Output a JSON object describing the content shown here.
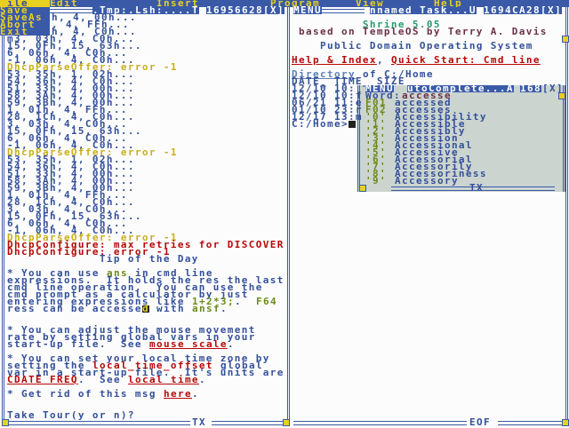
{
  "menubar": {
    "items": [
      "ile",
      "Edit",
      "Insert",
      "Program",
      "View",
      "Help"
    ],
    "dropdown": [
      "Save",
      "SaveAs",
      "Abort",
      "Exit"
    ]
  },
  "left": {
    "title": ".Tmp:.Lsh:....T",
    "task_id": "16956628",
    "close": "[X]",
    "status": "TX",
    "lines": [
      [
        [
          "h, 4, 00h...",
          "b"
        ]
      ],
      [
        [
          ", 4, FFh...",
          "b"
        ]
      ],
      [
        [
          "h, 4, C0h...",
          "b"
        ]
      ],
      [
        [
          "m3, 03h, 4, C0h...",
          "b"
        ]
      ],
      [
        [
          "15, 0Fh, 15, 63h...",
          "b"
        ]
      ],
      [
        [
          "6, 06h, 4, C0h...",
          "b"
        ]
      ],
      [
        [
          "-1, 06h, 4, C0h...",
          "b"
        ]
      ],
      [
        [
          "DhcpParseOffer: error -1",
          "y"
        ]
      ],
      [
        [
          "53, 35h, 1, 02h...",
          "b"
        ]
      ],
      [
        [
          "54, 36h, 4, C0h...",
          "b"
        ]
      ],
      [
        [
          "51, 33h, 4, 00h...",
          "b"
        ]
      ],
      [
        [
          "58, 3Ah, 4, 00h...",
          "b"
        ]
      ],
      [
        [
          "59, 3Bh, 4, 00h...",
          "b"
        ]
      ],
      [
        [
          "1, 01h, 4, FFh...",
          "b"
        ]
      ],
      [
        [
          "28, 1Ch, 4, C0h...",
          "b"
        ]
      ],
      [
        [
          "3, 03h, 4, C0h...",
          "b"
        ]
      ],
      [
        [
          "15, 0Fh, 15, 63h...",
          "b"
        ]
      ],
      [
        [
          "6, 06h, 4, C0h...",
          "b"
        ]
      ],
      [
        [
          "-1, 06h, 4, C0h...",
          "b"
        ]
      ],
      [
        [
          "DhcpParseOffer: error -1",
          "y"
        ]
      ],
      [
        [
          "53, 35h, 1, 02h...",
          "b"
        ]
      ],
      [
        [
          "54, 36h, 4, C0h...",
          "b"
        ]
      ],
      [
        [
          "51, 33h, 4, 00h...",
          "b"
        ]
      ],
      [
        [
          "58, 3Ah, 4, 00h...",
          "b"
        ]
      ],
      [
        [
          "59, 3Bh, 4, 00h...",
          "b"
        ]
      ],
      [
        [
          "1, 01h, 4, FFh...",
          "b"
        ]
      ],
      [
        [
          "28, 1Ch, 4, C0h...",
          "b"
        ]
      ],
      [
        [
          "3, 03h, 4, C0h...",
          "b"
        ]
      ],
      [
        [
          "15, 0Fh, 15, 63h...",
          "b"
        ]
      ],
      [
        [
          "6, 06h, 4, C0h...",
          "b"
        ]
      ],
      [
        [
          "-1, 06h, 4, C0h...",
          "b"
        ]
      ],
      [
        [
          "DhcpParseOffer: error -1",
          "y"
        ]
      ],
      [
        [
          "DhcpConfigure: max retries for DISCOVER",
          "r"
        ]
      ],
      [
        [
          "DhcpConfigure: error -1",
          "r"
        ]
      ],
      [
        [
          "             Tip of the Day",
          "b"
        ]
      ],
      [],
      [
        [
          "* You can use ",
          "b"
        ],
        [
          "ans",
          "g"
        ],
        [
          " in cmd line",
          "b"
        ]
      ],
      [
        [
          "expressions.  It holds the res the last",
          "b"
        ]
      ],
      [
        [
          "cmd line operation.  You can use the",
          "b"
        ]
      ],
      [
        [
          "cmd prompt as a calculator by just",
          "b"
        ]
      ],
      [
        [
          "entering expressions like ",
          "b"
        ],
        [
          "1+2*3;",
          "g"
        ],
        [
          ".  ",
          "b"
        ],
        [
          "F64",
          "g"
        ]
      ],
      [
        [
          "ress can be accesse",
          "b"
        ],
        [
          "d",
          "cur"
        ],
        [
          " with ",
          "b"
        ],
        [
          "ansf",
          "g"
        ],
        [
          ".",
          "b"
        ]
      ],
      [],
      [],
      [
        [
          "* You can adjust the mouse movement",
          "b"
        ]
      ],
      [
        [
          "rate by setting global vars in your",
          "b"
        ]
      ],
      [
        [
          "start-up file.  See ",
          "b"
        ],
        [
          "mouse scale",
          "r u"
        ],
        [
          ".",
          "b"
        ]
      ],
      [],
      [
        [
          "* You can set your local time zone by",
          "b"
        ]
      ],
      [
        [
          "setting the ",
          "b"
        ],
        [
          "local_time_offset",
          "r"
        ],
        [
          " global",
          "b"
        ]
      ],
      [
        [
          "var in a start-up file.  It's units are",
          "b"
        ]
      ],
      [
        [
          "CDATE FREQ",
          "r u"
        ],
        [
          ".  See ",
          "b"
        ],
        [
          "local time",
          "r u"
        ],
        [
          ".",
          "b"
        ]
      ],
      [],
      [
        [
          "* Get rid of this msg ",
          "b"
        ],
        [
          "here",
          "r u"
        ],
        [
          ".",
          "b"
        ]
      ],
      [],
      [],
      [
        [
          "Take Tour(y or n)?",
          "b"
        ]
      ]
    ]
  },
  "right": {
    "menu": "MENU",
    "title": "nnamed Task...U",
    "task_id": "1694CA28",
    "close": "[X]",
    "status": "EOF",
    "lines": [
      [],
      [
        [
          "          Shrine 5.05",
          "gr"
        ]
      ],
      [
        [
          " based on TempleOS by Terry A. Davis",
          "m"
        ]
      ],
      [],
      [
        [
          "    Public Domain Operating System",
          "b"
        ]
      ],
      [],
      [
        [
          "Help & Index",
          "r u"
        ],
        [
          ", ",
          "b"
        ],
        [
          "Quick Start: Cmd line",
          "r u"
        ]
      ],
      [],
      [
        [
          "Directory",
          "lb u"
        ],
        [
          " of C:/Home",
          "b"
        ]
      ],
      [
        [
          "DATE_ TIME_ SIZE",
          "b"
        ]
      ],
      [
        [
          "12/10 10:",
          "b"
        ]
      ],
      [
        [
          "12/10 10:f",
          "b"
        ]
      ],
      [
        [
          "06/21 11:e",
          "b"
        ]
      ],
      [
        [
          "01/10 23:r",
          "b"
        ]
      ],
      [
        [
          "12/17 13:m",
          "b"
        ]
      ],
      [
        [
          "C:/Home>",
          "b"
        ],
        [
          " ",
          "cur"
        ]
      ]
    ]
  },
  "autocomplete": {
    "menu": "MENU",
    "title": "utoComplete...A",
    "task_id": "168",
    "close": "[X]",
    "status": "TX",
    "word_label": "Word:",
    "word": "accesse",
    "items": [
      [
        "F01",
        "accessed"
      ],
      [
        "F02",
        "accesses"
      ],
      [
        "'0'",
        "Accessibility"
      ],
      [
        "'1'",
        "Accessible"
      ],
      [
        "'2'",
        "Accessibly"
      ],
      [
        "'3'",
        "Accession"
      ],
      [
        "'4'",
        "Accessional"
      ],
      [
        "'5'",
        "Accessive"
      ],
      [
        "'6'",
        "Accessorial"
      ],
      [
        "'7'",
        "Accessorily"
      ],
      [
        "'8'",
        "Accessoriness"
      ],
      [
        "'9'",
        "Accessory"
      ]
    ]
  },
  "colors": {
    "blue": "#3a5aa8",
    "yellow": "#e8d020",
    "red": "#b80808",
    "text_blue": "#34509a"
  }
}
